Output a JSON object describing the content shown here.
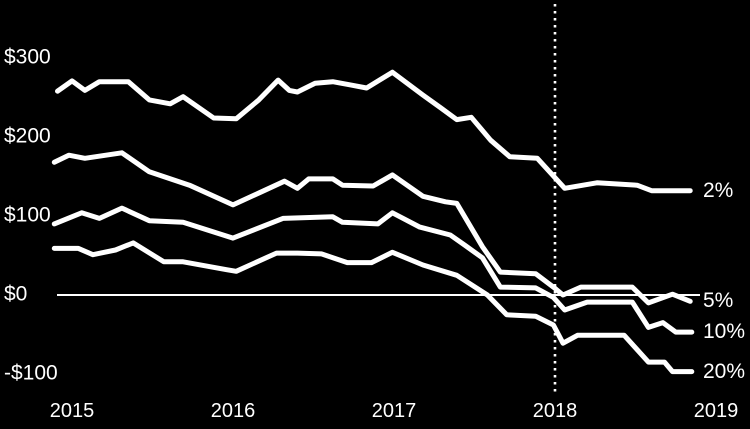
{
  "colors": {
    "background": "#000000",
    "line": "#ffffff",
    "text": "#ffffff",
    "axis": "#ffffff"
  },
  "chart_data": {
    "type": "line",
    "title": "",
    "xlabel": "",
    "ylabel": "",
    "grid": false,
    "legend_position": "right-end-labels",
    "x_range": [
      2014.85,
      2019.15
    ],
    "y_range": [
      -120,
      330
    ],
    "x_ticks": [
      {
        "label": "2015",
        "x": 2015
      },
      {
        "label": "2016",
        "x": 2016
      },
      {
        "label": "2017",
        "x": 2017
      },
      {
        "label": "2018",
        "x": 2018
      },
      {
        "label": "2019",
        "x": 2019
      }
    ],
    "y_ticks": [
      {
        "label": "$300",
        "value": 300
      },
      {
        "label": "$200",
        "value": 200
      },
      {
        "label": "$100",
        "value": 100
      },
      {
        "label": "$0",
        "value": 0
      },
      {
        "label": "-$100",
        "value": -100
      }
    ],
    "reference_lines": {
      "horizontal_zero_value": 0,
      "vertical_dotted_x": 2018
    },
    "series": [
      {
        "name": "2%",
        "end_label": "2%",
        "points": [
          [
            2014.91,
            258
          ],
          [
            2015.0,
            271
          ],
          [
            2015.08,
            259
          ],
          [
            2015.17,
            270
          ],
          [
            2015.35,
            270
          ],
          [
            2015.48,
            247
          ],
          [
            2015.61,
            242
          ],
          [
            2015.69,
            251
          ],
          [
            2015.88,
            224
          ],
          [
            2016.02,
            223
          ],
          [
            2016.16,
            247
          ],
          [
            2016.28,
            272
          ],
          [
            2016.35,
            259
          ],
          [
            2016.4,
            257
          ],
          [
            2016.51,
            268
          ],
          [
            2016.62,
            270
          ],
          [
            2016.73,
            266
          ],
          [
            2016.83,
            262
          ],
          [
            2016.99,
            282
          ],
          [
            2017.18,
            253
          ],
          [
            2017.29,
            237
          ],
          [
            2017.39,
            222
          ],
          [
            2017.48,
            225
          ],
          [
            2017.6,
            196
          ],
          [
            2017.72,
            175
          ],
          [
            2017.89,
            173
          ],
          [
            2018.06,
            135
          ],
          [
            2018.26,
            142
          ],
          [
            2018.51,
            139
          ],
          [
            2018.6,
            132
          ],
          [
            2018.84,
            132
          ]
        ]
      },
      {
        "name": "5%",
        "end_label": "5%",
        "points": [
          [
            2014.89,
            168
          ],
          [
            2014.98,
            177
          ],
          [
            2015.08,
            173
          ],
          [
            2015.31,
            180
          ],
          [
            2015.48,
            156
          ],
          [
            2015.73,
            139
          ],
          [
            2016.0,
            114
          ],
          [
            2016.17,
            130
          ],
          [
            2016.32,
            144
          ],
          [
            2016.4,
            135
          ],
          [
            2016.47,
            147
          ],
          [
            2016.62,
            147
          ],
          [
            2016.68,
            139
          ],
          [
            2016.87,
            138
          ],
          [
            2016.99,
            152
          ],
          [
            2017.18,
            125
          ],
          [
            2017.32,
            118
          ],
          [
            2017.39,
            116
          ],
          [
            2017.55,
            61
          ],
          [
            2017.66,
            29
          ],
          [
            2017.88,
            27
          ],
          [
            2017.99,
            10
          ],
          [
            2018.05,
            0
          ],
          [
            2018.16,
            10
          ],
          [
            2018.48,
            10
          ],
          [
            2018.58,
            -10
          ],
          [
            2018.73,
            1
          ],
          [
            2018.84,
            -8
          ]
        ]
      },
      {
        "name": "10%",
        "end_label": "10%",
        "points": [
          [
            2014.89,
            90
          ],
          [
            2015.06,
            104
          ],
          [
            2015.17,
            97
          ],
          [
            2015.31,
            110
          ],
          [
            2015.48,
            94
          ],
          [
            2015.69,
            92
          ],
          [
            2016.0,
            72
          ],
          [
            2016.31,
            97
          ],
          [
            2016.62,
            99
          ],
          [
            2016.68,
            92
          ],
          [
            2016.9,
            90
          ],
          [
            2016.99,
            104
          ],
          [
            2017.16,
            86
          ],
          [
            2017.35,
            76
          ],
          [
            2017.44,
            63
          ],
          [
            2017.55,
            47
          ],
          [
            2017.66,
            10
          ],
          [
            2017.88,
            9
          ],
          [
            2017.99,
            -3
          ],
          [
            2018.06,
            -19
          ],
          [
            2018.2,
            -9
          ],
          [
            2018.48,
            -9
          ],
          [
            2018.58,
            -41
          ],
          [
            2018.67,
            -35
          ],
          [
            2018.75,
            -47
          ],
          [
            2018.85,
            -47
          ]
        ]
      },
      {
        "name": "20%",
        "end_label": "20%",
        "points": [
          [
            2014.89,
            59
          ],
          [
            2015.04,
            59
          ],
          [
            2015.13,
            51
          ],
          [
            2015.27,
            57
          ],
          [
            2015.38,
            66
          ],
          [
            2015.57,
            42
          ],
          [
            2015.69,
            42
          ],
          [
            2015.96,
            32
          ],
          [
            2016.02,
            30
          ],
          [
            2016.27,
            53
          ],
          [
            2016.4,
            53
          ],
          [
            2016.55,
            52
          ],
          [
            2016.71,
            41
          ],
          [
            2016.86,
            41
          ],
          [
            2016.99,
            54
          ],
          [
            2017.18,
            38
          ],
          [
            2017.39,
            25
          ],
          [
            2017.58,
            0
          ],
          [
            2017.7,
            -25
          ],
          [
            2017.88,
            -27
          ],
          [
            2017.99,
            -38
          ],
          [
            2018.05,
            -61
          ],
          [
            2018.14,
            -51
          ],
          [
            2018.43,
            -51
          ],
          [
            2018.58,
            -85
          ],
          [
            2018.68,
            -85
          ],
          [
            2018.73,
            -97
          ],
          [
            2018.85,
            -97
          ]
        ]
      }
    ]
  }
}
